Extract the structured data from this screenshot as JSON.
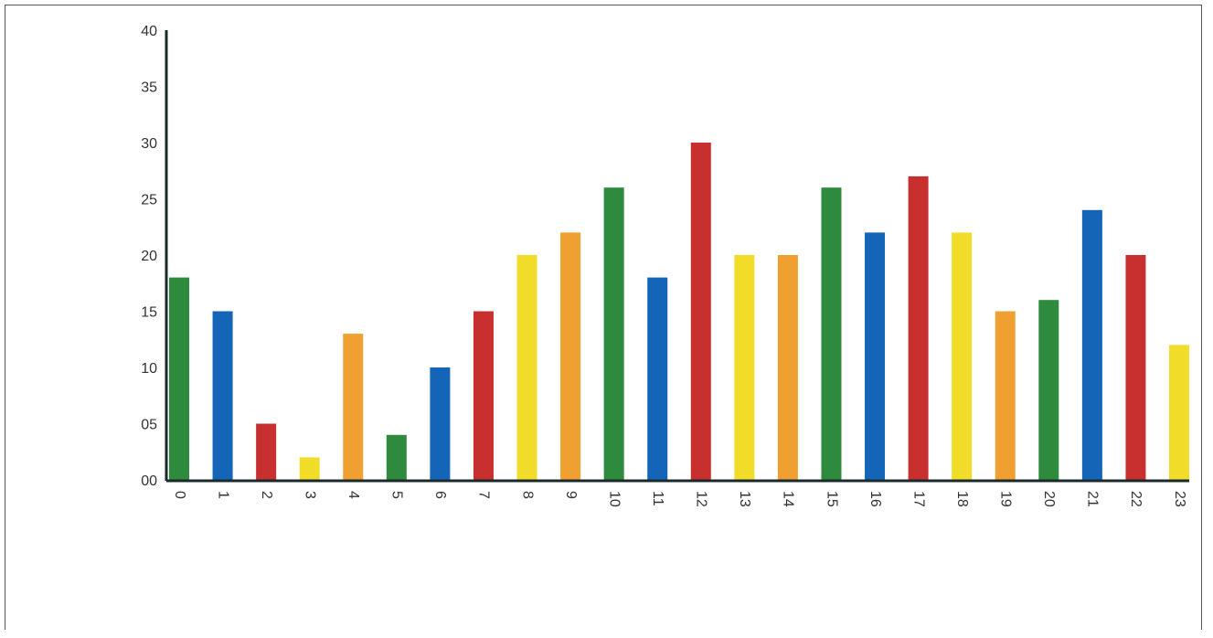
{
  "chart_data": {
    "type": "bar",
    "title": "",
    "xlabel": "",
    "ylabel": "",
    "categories": [
      "0",
      "1",
      "2",
      "3",
      "4",
      "5",
      "6",
      "7",
      "8",
      "9",
      "10",
      "11",
      "12",
      "13",
      "14",
      "15",
      "16",
      "17",
      "18",
      "19",
      "20",
      "21",
      "22",
      "23"
    ],
    "values": [
      18,
      15,
      5,
      2,
      13,
      4,
      10,
      15,
      20,
      22,
      26,
      18,
      30,
      20,
      20,
      26,
      22,
      27,
      22,
      15,
      16,
      24,
      20,
      12
    ],
    "bar_colors": [
      "#2e8b3e",
      "#1465b8",
      "#c83030",
      "#f2dc2a",
      "#f0a030",
      "#2e8b3e",
      "#1465b8",
      "#c83030",
      "#f2dc2a",
      "#f0a030",
      "#2e8b3e",
      "#1465b8",
      "#c83030",
      "#f2dc2a",
      "#f0a030",
      "#2e8b3e",
      "#1465b8",
      "#c83030",
      "#f2dc2a",
      "#f0a030",
      "#2e8b3e",
      "#1465b8",
      "#c83030",
      "#f2dc2a"
    ],
    "ylim": [
      0,
      40
    ],
    "yticks": [
      "00",
      "05",
      "10",
      "15",
      "20",
      "25",
      "30",
      "35",
      "40"
    ],
    "grid": false,
    "legend": "none"
  }
}
